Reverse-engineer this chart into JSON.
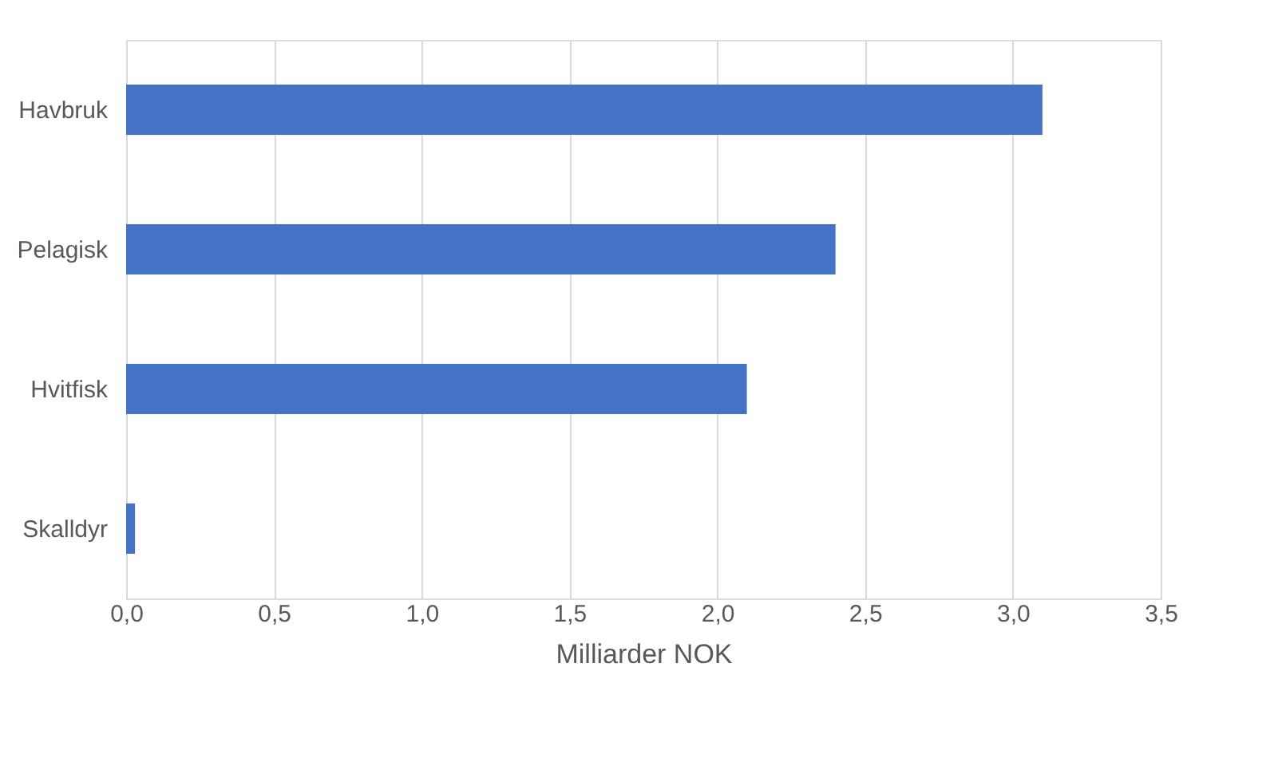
{
  "chart_data": {
    "type": "bar",
    "orientation": "horizontal",
    "xlabel": "Milliarder NOK",
    "categories": [
      "Havbruk",
      "Pelagisk",
      "Hvitfisk",
      "Skalldyr"
    ],
    "values": [
      3.1,
      2.4,
      2.1,
      0.03
    ],
    "color": "#4472c4",
    "xlim": [
      0,
      3.5
    ],
    "xticks": [
      {
        "value": 0,
        "label": "0,0"
      },
      {
        "value": 0.5,
        "label": "0,5"
      },
      {
        "value": 1,
        "label": "1,0"
      },
      {
        "value": 1.5,
        "label": "1,5"
      },
      {
        "value": 2,
        "label": "2,0"
      },
      {
        "value": 2.5,
        "label": "2,5"
      },
      {
        "value": 3,
        "label": "3,0"
      },
      {
        "value": 3.5,
        "label": "3,5"
      }
    ],
    "grid": "x"
  }
}
